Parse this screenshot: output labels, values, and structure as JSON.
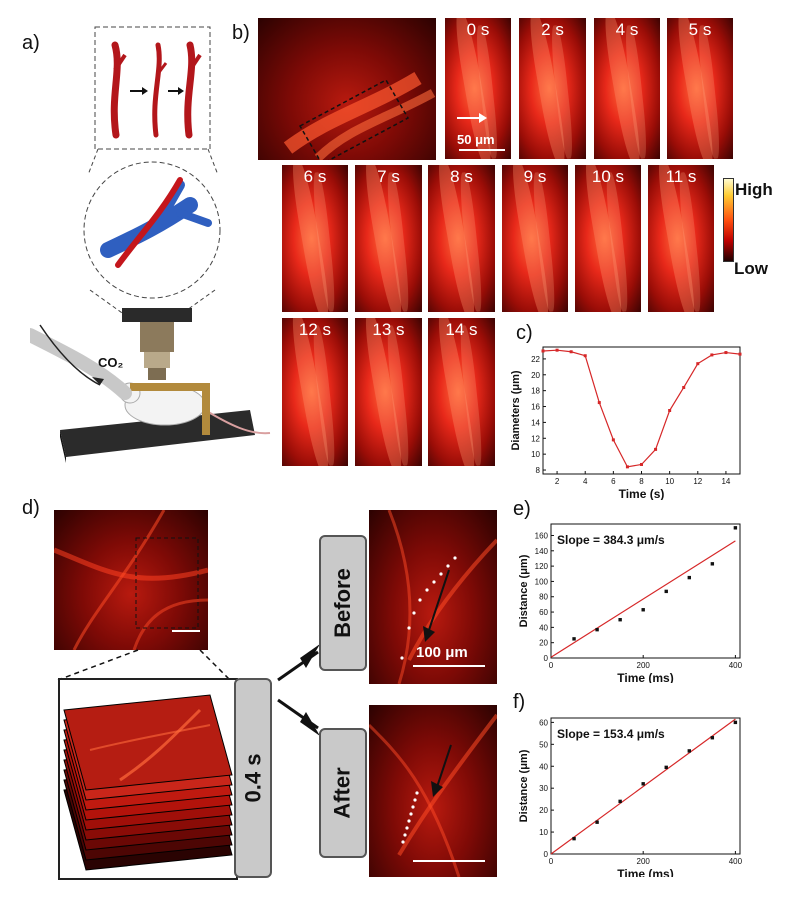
{
  "panel_labels": {
    "a": "a)",
    "b": "b)",
    "c": "c)",
    "d": "d)",
    "e": "e)",
    "f": "f)"
  },
  "panel_a": {
    "gas_label": "CO₂"
  },
  "panel_b": {
    "frames": [
      "0 s",
      "2 s",
      "4 s",
      "5 s",
      "6 s",
      "7 s",
      "8 s",
      "9 s",
      "10 s",
      "11 s",
      "12 s",
      "13 s",
      "14 s"
    ],
    "scale_bar": "50 μm",
    "colorbar": {
      "high": "High",
      "low": "Low"
    }
  },
  "panel_d": {
    "stack_label": "0.4 s",
    "before_label": "Before",
    "after_label": "After",
    "scale_bar": "100 μm"
  },
  "chart_data": [
    {
      "id": "c",
      "type": "line",
      "xlabel": "Time (s)",
      "ylabel": "Diameters (μm)",
      "xlim": [
        1,
        15
      ],
      "ylim": [
        7.5,
        23.5
      ],
      "xticks": [
        2,
        4,
        6,
        8,
        10,
        12,
        14
      ],
      "yticks": [
        8,
        10,
        12,
        14,
        16,
        18,
        20,
        22
      ],
      "series": [
        {
          "color": "#d62728",
          "x": [
            1,
            2,
            3,
            4,
            5,
            6,
            7,
            8,
            9,
            10,
            11,
            12,
            13,
            14,
            15
          ],
          "y": [
            23.0,
            23.1,
            22.9,
            22.4,
            16.5,
            11.8,
            8.4,
            8.7,
            10.6,
            15.5,
            18.4,
            21.4,
            22.5,
            22.8,
            22.6
          ]
        }
      ]
    },
    {
      "id": "e",
      "type": "scatter",
      "xlabel": "Time (ms)",
      "ylabel": "Distance (μm)",
      "annotation": "Slope = 384.3 μm/s",
      "xlim": [
        0,
        410
      ],
      "ylim": [
        0,
        175
      ],
      "xticks": [
        0,
        200,
        400
      ],
      "yticks": [
        0,
        20,
        40,
        60,
        80,
        100,
        120,
        140,
        160
      ],
      "points": {
        "x": [
          50,
          100,
          150,
          200,
          250,
          300,
          350,
          400
        ],
        "y": [
          25,
          37,
          50,
          63,
          87,
          105,
          123,
          170
        ]
      },
      "fit_line": {
        "color": "#d62728",
        "x": [
          0,
          400
        ],
        "y": [
          1,
          153
        ]
      }
    },
    {
      "id": "f",
      "type": "scatter",
      "xlabel": "Time (ms)",
      "ylabel": "Distance (μm)",
      "annotation": "Slope = 153.4 μm/s",
      "xlim": [
        0,
        410
      ],
      "ylim": [
        0,
        62
      ],
      "xticks": [
        0,
        200,
        400
      ],
      "yticks": [
        0,
        10,
        20,
        30,
        40,
        50,
        60
      ],
      "points": {
        "x": [
          50,
          100,
          150,
          200,
          250,
          300,
          350,
          400
        ],
        "y": [
          7,
          14.5,
          24,
          32,
          39.5,
          47,
          53,
          60
        ]
      },
      "fit_line": {
        "color": "#d62728",
        "x": [
          0,
          400
        ],
        "y": [
          0,
          61.5
        ]
      }
    }
  ]
}
